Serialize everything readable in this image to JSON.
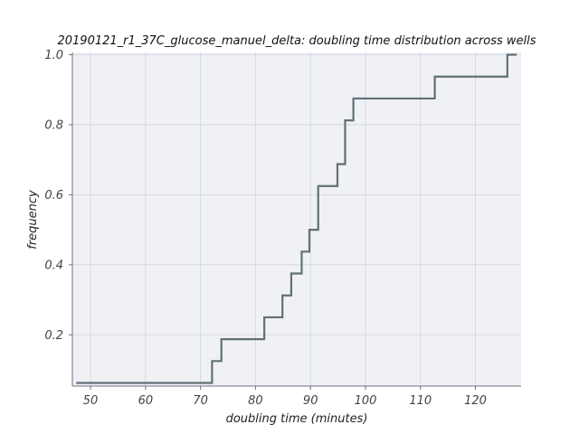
{
  "chart_data": {
    "type": "line",
    "step": true,
    "title": "20190121_r1_37C_glucose_manuel_delta: doubling time distribution across wells",
    "xlabel": "doubling time (minutes)",
    "ylabel": "frequency",
    "xlim": [
      46.7,
      128.3
    ],
    "ylim": [
      0.0535,
      1.0065
    ],
    "xticks": [
      50,
      60,
      70,
      80,
      90,
      100,
      110,
      120
    ],
    "yticks": [
      0.2,
      0.4,
      0.6,
      0.8,
      1.0
    ],
    "xtick_labels": [
      "50",
      "60",
      "70",
      "80",
      "90",
      "100",
      "110",
      "120"
    ],
    "ytick_labels": [
      "0.2",
      "0.4",
      "0.6",
      "0.8",
      "1.0"
    ],
    "grid": true,
    "background": "#f0f1f5",
    "line_color": "#5f7177",
    "series": [
      {
        "x": [
          47.4,
          72.1,
          73.8,
          81.6,
          84.9,
          86.5,
          88.4,
          89.8,
          91.4,
          94.9,
          96.3,
          97.8,
          112.6,
          125.8,
          127.5
        ],
        "y": [
          0.0625,
          0.125,
          0.1875,
          0.25,
          0.3125,
          0.375,
          0.4375,
          0.5,
          0.625,
          0.6875,
          0.8125,
          0.875,
          0.9375,
          1.0,
          1.0
        ]
      }
    ]
  }
}
